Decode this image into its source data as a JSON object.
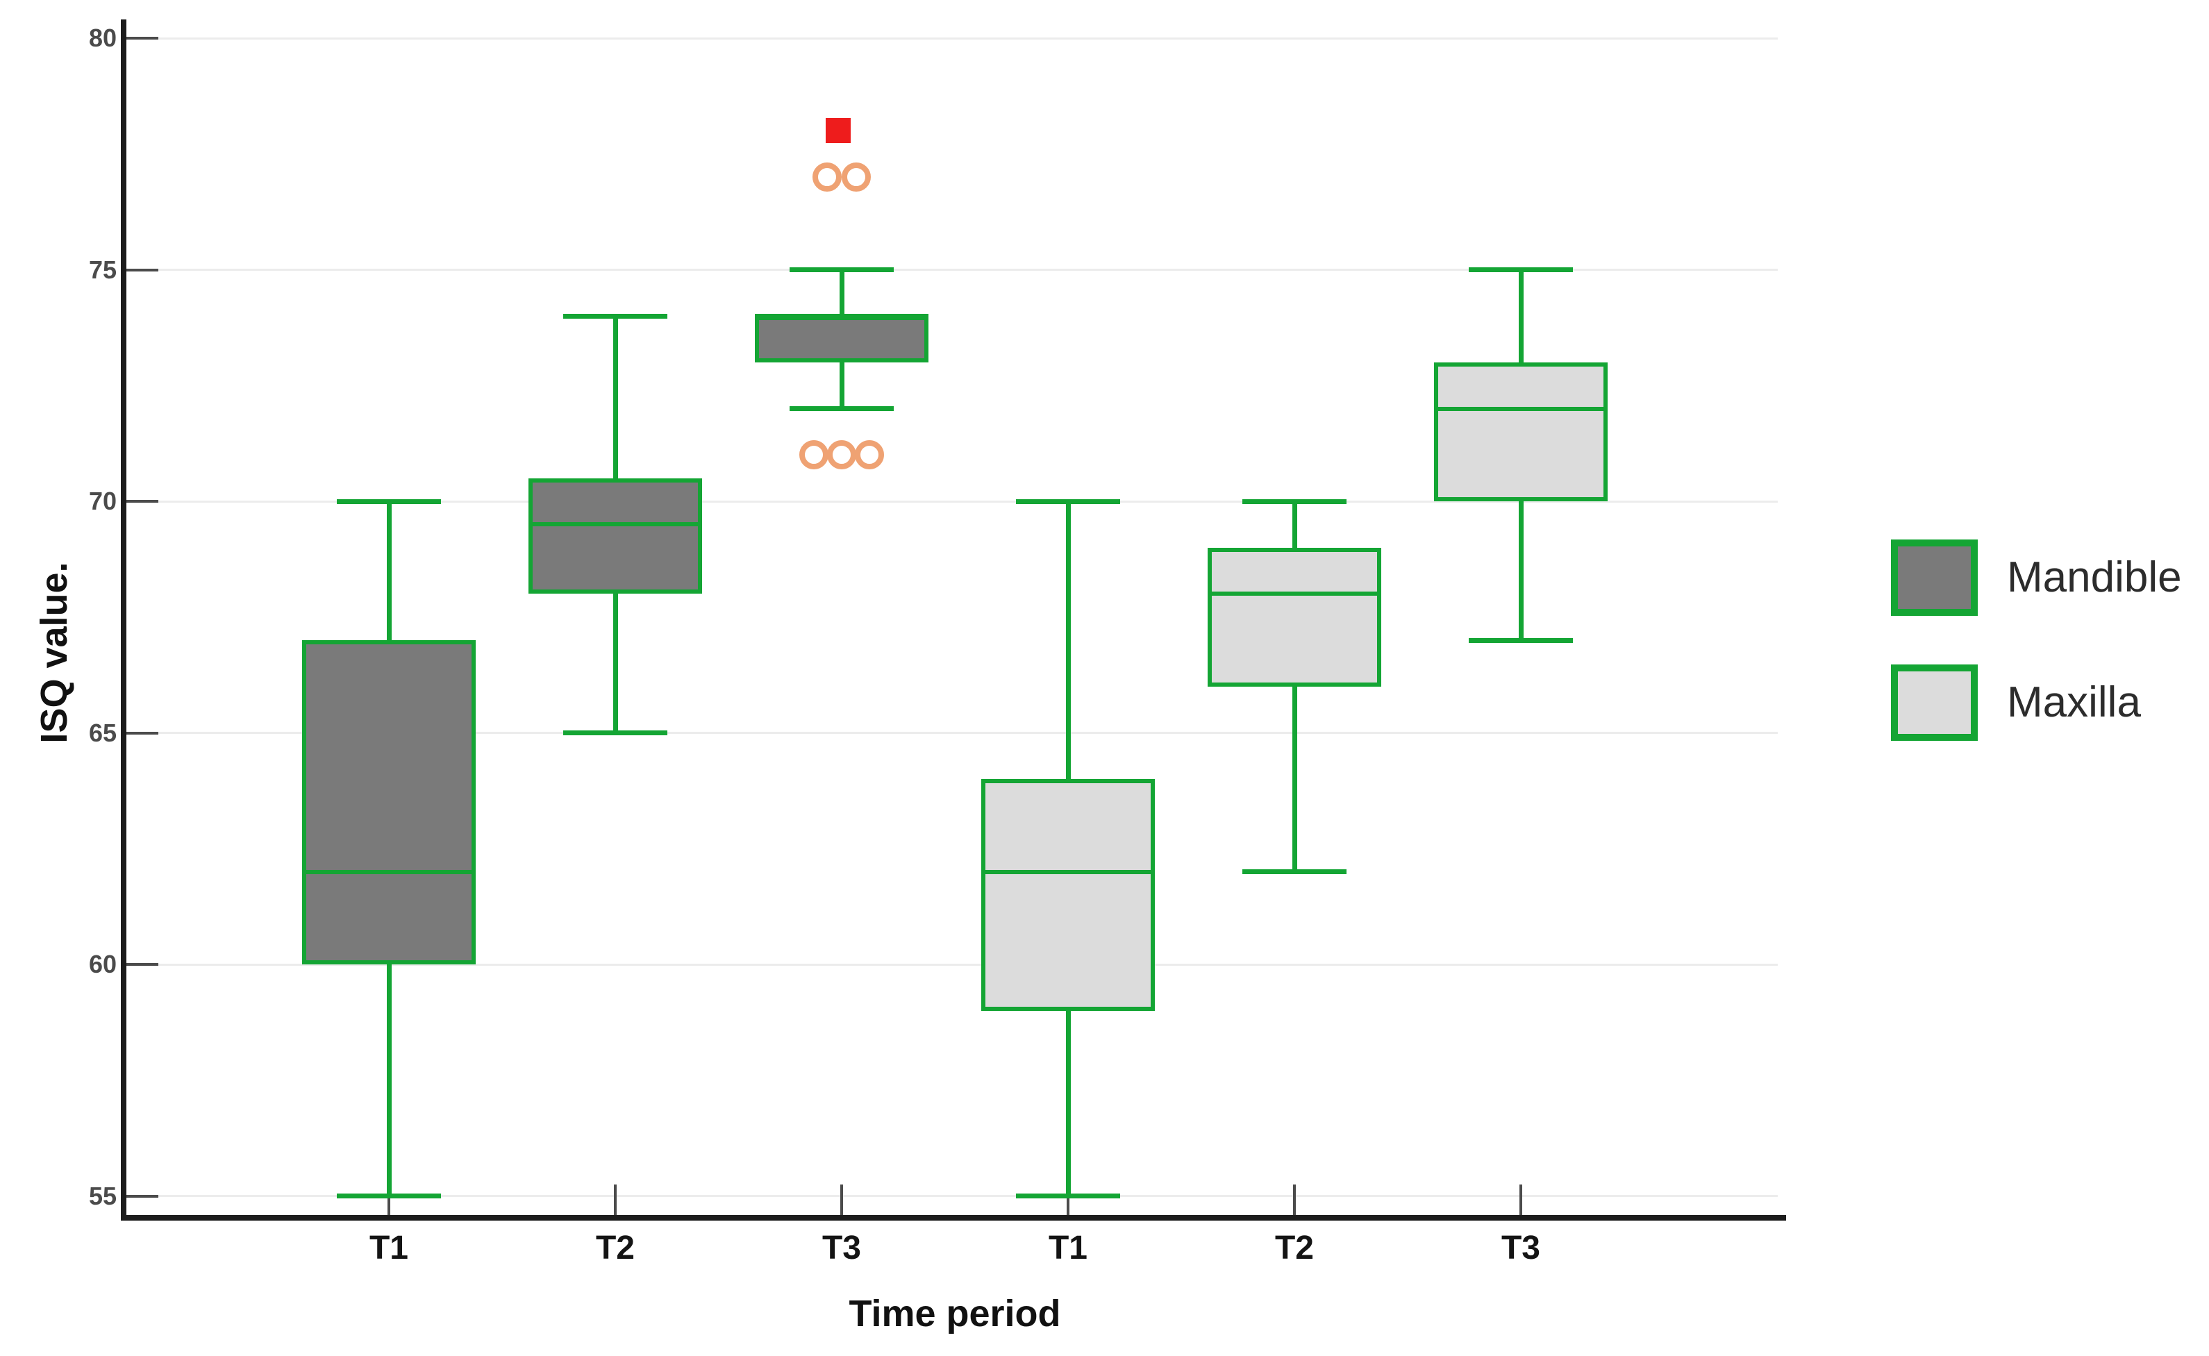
{
  "figure": {
    "background": "#ffffff"
  },
  "chart_data": {
    "type": "boxplot",
    "title": "",
    "xlabel": "Time period",
    "ylabel": "ISQ value.",
    "y_ticks": [
      55,
      60,
      65,
      70,
      75,
      80
    ],
    "ylim": [
      54.5,
      80.4
    ],
    "grid": "horizontal-light",
    "legend_position": "right",
    "categories": [
      "T1",
      "T2",
      "T3",
      "T1",
      "T2",
      "T3"
    ],
    "groups": [
      {
        "name": "Mandible",
        "fill": "#7a7a7a",
        "boxes": [
          {
            "slot": 0,
            "category": "T1",
            "min": 55,
            "q1": 60,
            "median": 62,
            "q3": 67,
            "max": 70,
            "outliers": [],
            "extremes": []
          },
          {
            "slot": 1,
            "category": "T2",
            "min": 65,
            "q1": 68,
            "median": 69.5,
            "q3": 70.5,
            "max": 74,
            "outliers": [],
            "extremes": []
          },
          {
            "slot": 2,
            "category": "T3",
            "min": 72,
            "q1": 73,
            "median": 74,
            "q3": 74,
            "max": 75,
            "outliers": [
              {
                "value": 71,
                "dx": -40
              },
              {
                "value": 71,
                "dx": 0
              },
              {
                "value": 71,
                "dx": 40
              },
              {
                "value": 77,
                "dx": -21
              },
              {
                "value": 77,
                "dx": 21
              }
            ],
            "extremes": [
              {
                "value": 78,
                "dx": -5
              }
            ]
          }
        ]
      },
      {
        "name": "Maxilla",
        "fill": "#dcdcdc",
        "boxes": [
          {
            "slot": 3,
            "category": "T1",
            "min": 55,
            "q1": 59,
            "median": 62,
            "q3": 64,
            "max": 70,
            "outliers": [],
            "extremes": []
          },
          {
            "slot": 4,
            "category": "T2",
            "min": 62,
            "q1": 66,
            "median": 68,
            "q3": 69,
            "max": 70,
            "outliers": [],
            "extremes": []
          },
          {
            "slot": 5,
            "category": "T3",
            "min": 67,
            "q1": 70,
            "median": 72,
            "q3": 73,
            "max": 75,
            "outliers": [],
            "extremes": []
          }
        ]
      }
    ],
    "legend": {
      "entries": [
        {
          "label": "Mandible",
          "fill": "#7a7a7a"
        },
        {
          "label": "Maxilla",
          "fill": "#dcdcdc"
        }
      ]
    }
  },
  "colors": {
    "box_border_green": "#14a534",
    "mandible_fill": "#7a7a7a",
    "maxilla_fill": "#dcdcdc",
    "outlier_circle_orange": "#efa273",
    "extreme_square_red": "#ee1c1c",
    "axis_black": "#1c1c1c",
    "gridline_gray": "#ececec",
    "tick_text_gray": "#4b4b4b",
    "label_text_black": "#141414",
    "legend_text": "#2c2c2c"
  },
  "icons": {
    "outlier_marker": "circle-outline-icon",
    "extreme_marker": "filled-square-icon"
  }
}
